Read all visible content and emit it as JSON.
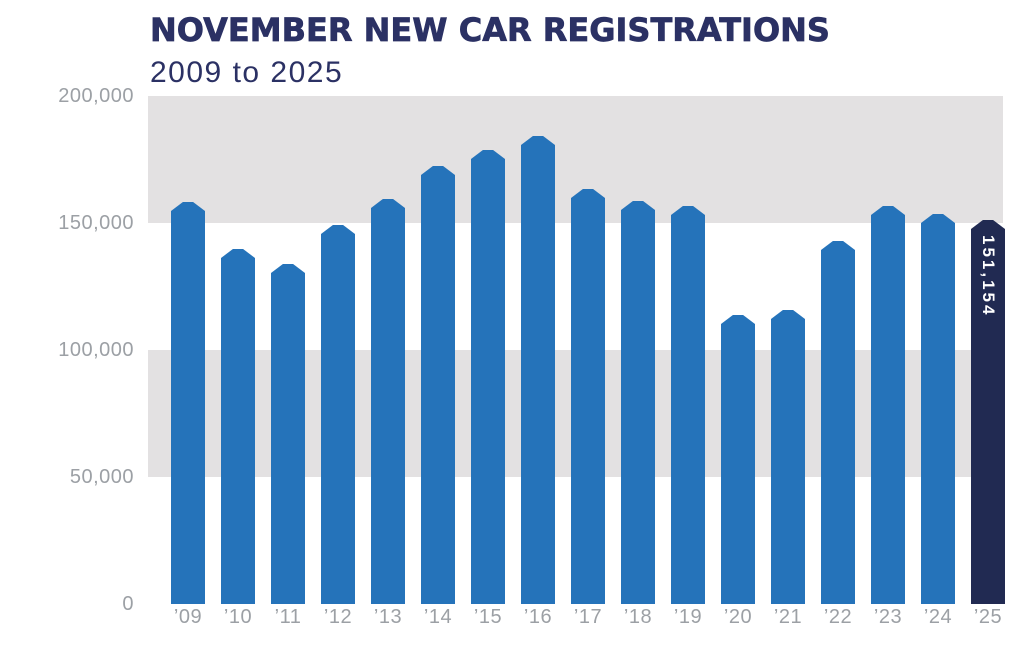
{
  "chart_data": {
    "type": "bar",
    "title": "NOVEMBER NEW CAR REGISTRATIONS",
    "subtitle": "2009 to 2025",
    "xlabel": "",
    "ylabel": "",
    "ylim": [
      0,
      200000
    ],
    "legend": false,
    "grid": "alternating horizontal gray bands between 150k-200k and 50k-100k",
    "categories": [
      "’09",
      "’10",
      "’11",
      "’12",
      "’13",
      "’14",
      "’15",
      "’16",
      "’17",
      "’18",
      "’19",
      "’20",
      "’21",
      "’22",
      "’23",
      "’24",
      "’25"
    ],
    "values": [
      158082,
      139875,
      134027,
      149191,
      159581,
      172327,
      178876,
      184101,
      163541,
      158639,
      156621,
      113781,
      115706,
      142889,
      156525,
      153610,
      151154
    ],
    "highlight_index": 16,
    "highlight_label": "151,154",
    "y_ticks": [
      {
        "value": 200000,
        "label": "200,000"
      },
      {
        "value": 150000,
        "label": "150,000"
      },
      {
        "value": 100000,
        "label": "100,000"
      },
      {
        "value": 50000,
        "label": "50,000"
      },
      {
        "value": 0,
        "label": "0"
      }
    ],
    "bands": [
      {
        "from": 150000,
        "to": 200000
      },
      {
        "from": 50000,
        "to": 100000
      }
    ],
    "colors": {
      "bar": "#2573BA",
      "highlight_bar": "#212A52",
      "band": "#E3E1E2",
      "axis_text": "#9CA0A5",
      "title_text": "#2B3164",
      "highlight_label_text": "#FFFFFF",
      "background": "#FFFFFF"
    }
  }
}
